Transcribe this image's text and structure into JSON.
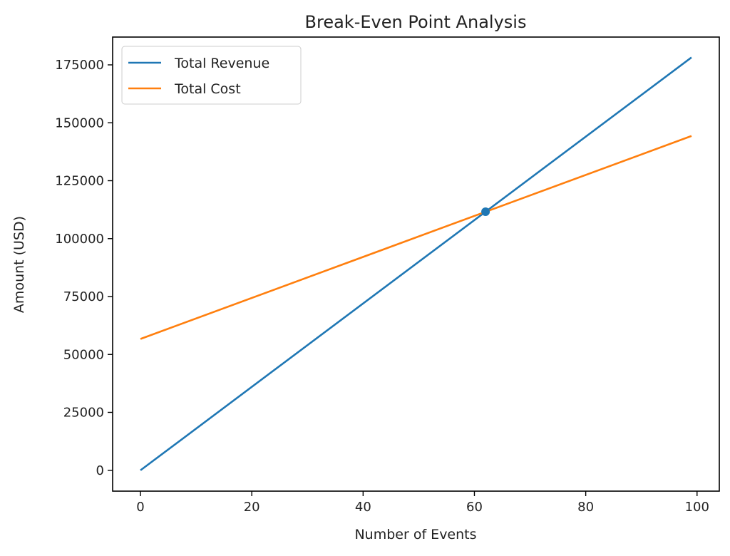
{
  "chart_data": {
    "type": "line",
    "title": "Break-Even Point Analysis",
    "xlabel": "Number of Events",
    "ylabel": "Amount (USD)",
    "xlim": [
      -5,
      104
    ],
    "ylim": [
      -9000,
      187000
    ],
    "xticks": [
      0,
      20,
      40,
      60,
      80,
      100
    ],
    "yticks": [
      0,
      25000,
      50000,
      75000,
      100000,
      125000,
      150000,
      175000
    ],
    "grid": false,
    "legend": "top-left",
    "series": [
      {
        "name": "Total Revenue",
        "color": "#1f77b4",
        "x": [
          0,
          99
        ],
        "y": [
          0,
          178200
        ]
      },
      {
        "name": "Total Cost",
        "color": "#ff7f0e",
        "x": [
          0,
          99
        ],
        "y": [
          56700,
          144300
        ]
      }
    ],
    "annotations": [
      {
        "type": "point",
        "label": "",
        "x": 62,
        "y": 111600,
        "color": "#1f77b4"
      }
    ]
  }
}
